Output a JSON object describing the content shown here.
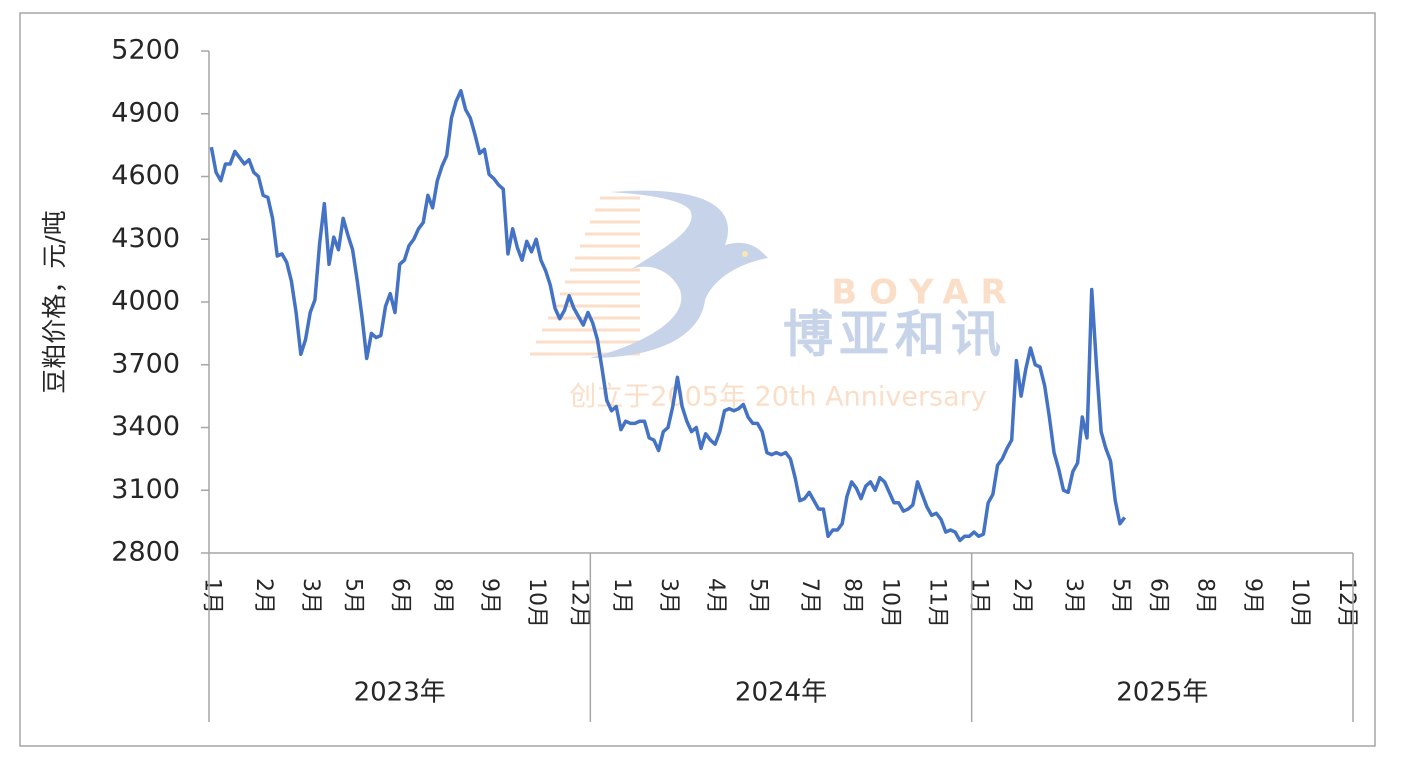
{
  "chart_data": {
    "type": "line",
    "y_label": "豆粕价格，元/吨",
    "watermark": {
      "brand": "BOYAR",
      "name": "博亚和讯",
      "slogan": "创立于2005年 20th Anniversary"
    },
    "year_groups": [
      "2023年",
      "2024年",
      "2025年"
    ],
    "categories": [
      "1月",
      null,
      null,
      null,
      null,
      null,
      null,
      null,
      null,
      null,
      null,
      "2月",
      null,
      null,
      null,
      null,
      null,
      null,
      null,
      null,
      null,
      "3月",
      null,
      null,
      null,
      null,
      null,
      null,
      null,
      null,
      "5月",
      null,
      null,
      null,
      null,
      null,
      null,
      null,
      null,
      null,
      "6月",
      null,
      null,
      null,
      null,
      null,
      null,
      null,
      null,
      "8月",
      null,
      null,
      null,
      null,
      null,
      null,
      null,
      null,
      null,
      "9月",
      null,
      null,
      null,
      null,
      null,
      null,
      null,
      null,
      null,
      "10月",
      null,
      null,
      null,
      null,
      null,
      null,
      null,
      null,
      "12月",
      null,
      null,
      null,
      null,
      null,
      null,
      null,
      null,
      "1月",
      null,
      null,
      null,
      null,
      null,
      null,
      null,
      null,
      null,
      "3月",
      null,
      null,
      null,
      null,
      null,
      null,
      null,
      null,
      null,
      "4月",
      null,
      null,
      null,
      null,
      null,
      null,
      null,
      null,
      "5月",
      null,
      null,
      null,
      null,
      null,
      null,
      null,
      null,
      null,
      null,
      "7月",
      null,
      null,
      null,
      null,
      null,
      null,
      null,
      null,
      "8月",
      null,
      null,
      null,
      null,
      null,
      null,
      null,
      "10月",
      null,
      null,
      null,
      null,
      null,
      null,
      null,
      null,
      null,
      "11月",
      null,
      null,
      null,
      null,
      null,
      null,
      null,
      null,
      "1月",
      null,
      null,
      null,
      null,
      null,
      null,
      null,
      null,
      "2月",
      null,
      null,
      null,
      null,
      null,
      null,
      null,
      null,
      null,
      null,
      "3月",
      null,
      null,
      null,
      null,
      null,
      null,
      null,
      null,
      null,
      "5月",
      null,
      null,
      null,
      null,
      null,
      null,
      null,
      "6月",
      null,
      null,
      null,
      null,
      null,
      null,
      null,
      null,
      null,
      "8月",
      null,
      null,
      null,
      null,
      null,
      null,
      null,
      null,
      null,
      "9月",
      null,
      null,
      null,
      null,
      null,
      null,
      null,
      null,
      null,
      "10月",
      null,
      null,
      null,
      null,
      null,
      null,
      null,
      null,
      null,
      "12月",
      null
    ],
    "series": [
      {
        "color": "#4472c4",
        "values": [
          4740,
          4620,
          4580,
          4660,
          4660,
          4720,
          4690,
          4660,
          4680,
          4620,
          4600,
          4510,
          4500,
          4400,
          4220,
          4230,
          4190,
          4100,
          3950,
          3750,
          3820,
          3950,
          4010,
          4280,
          4470,
          4180,
          4310,
          4250,
          4400,
          4320,
          4250,
          4100,
          3930,
          3730,
          3850,
          3830,
          3840,
          3980,
          4040,
          3950,
          4180,
          4200,
          4270,
          4300,
          4350,
          4380,
          4510,
          4450,
          4580,
          4650,
          4700,
          4880,
          4960,
          5010,
          4920,
          4880,
          4800,
          4710,
          4730,
          4610,
          4590,
          4560,
          4540,
          4230,
          4350,
          4260,
          4200,
          4290,
          4240,
          4300,
          4200,
          4150,
          4080,
          3970,
          3920,
          3960,
          4030,
          3970,
          3930,
          3890,
          3950,
          3900,
          3820,
          3680,
          3530,
          3480,
          3500,
          3390,
          3430,
          3420,
          3420,
          3430,
          3430,
          3350,
          3340,
          3290,
          3380,
          3400,
          3500,
          3640,
          3500,
          3430,
          3380,
          3400,
          3300,
          3370,
          3340,
          3320,
          3380,
          3480,
          3490,
          3480,
          3490,
          3510,
          3450,
          3420,
          3420,
          3380,
          3280,
          3270,
          3280,
          3270,
          3280,
          3250,
          3160,
          3050,
          3060,
          3090,
          3050,
          3010,
          3010,
          2880,
          2910,
          2910,
          2940,
          3070,
          3140,
          3110,
          3060,
          3120,
          3140,
          3100,
          3160,
          3140,
          3090,
          3040,
          3040,
          3000,
          3010,
          3030,
          3140,
          3080,
          3020,
          2980,
          2990,
          2960,
          2900,
          2910,
          2900,
          2860,
          2880,
          2880,
          2900,
          2880,
          2890,
          3040,
          3080,
          3220,
          3250,
          3300,
          3340,
          3720,
          3550,
          3680,
          3780,
          3700,
          3690,
          3600,
          3450,
          3280,
          3200,
          3100,
          3090,
          3190,
          3230,
          3450,
          3350,
          4060,
          3700,
          3380,
          3300,
          3240,
          3050,
          2940,
          2970,
          null,
          null,
          null,
          null,
          null,
          null,
          null,
          null,
          null,
          null,
          null,
          null,
          null,
          null,
          null,
          null,
          null,
          null,
          null,
          null,
          null,
          null,
          null,
          null,
          null,
          null,
          null,
          null,
          null,
          null,
          null,
          null,
          null,
          null,
          null,
          null,
          null,
          null,
          null,
          null,
          null,
          null,
          null,
          null,
          null,
          null,
          null,
          null
        ]
      }
    ],
    "ylim": [
      2800,
      5200
    ],
    "yticks": [
      2800,
      3100,
      3400,
      3700,
      4000,
      4300,
      4600,
      4900,
      5200
    ],
    "grid": false
  }
}
